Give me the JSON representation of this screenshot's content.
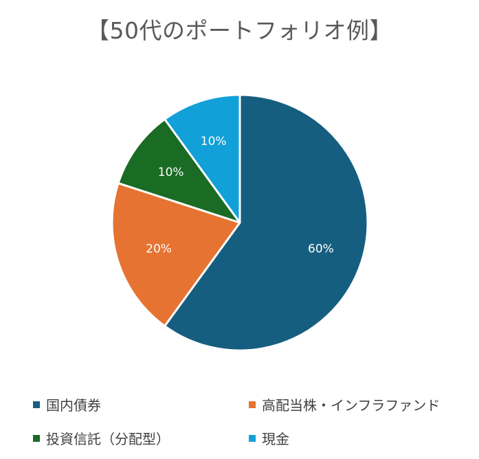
{
  "chart_data": {
    "type": "pie",
    "title": "【50代のポートフォリオ例】",
    "start_angle_deg": 0,
    "direction": "clockwise",
    "legend_position": "bottom",
    "slices": [
      {
        "label": "国内債券",
        "value": 60,
        "display": "60%",
        "color": "#165e80"
      },
      {
        "label": "高配当株・インフラファンド",
        "value": 20,
        "display": "20%",
        "color": "#e67332"
      },
      {
        "label": "投資信託（分配型）",
        "value": 10,
        "display": "10%",
        "color": "#1a6b24"
      },
      {
        "label": "現金",
        "value": 10,
        "display": "10%",
        "color": "#11a0d8"
      }
    ]
  }
}
